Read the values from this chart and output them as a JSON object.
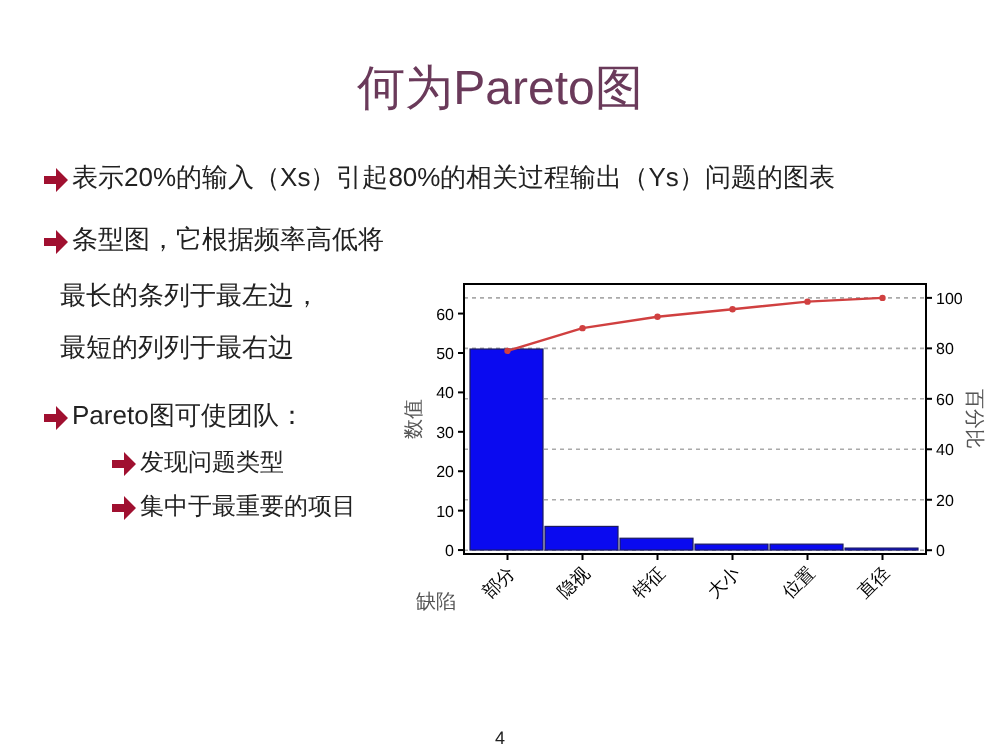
{
  "chart_data": {
    "type": "bar",
    "title": "何为Pareto图",
    "categories": [
      "部分",
      "隐视",
      "特征",
      "大小",
      "位置",
      "直径"
    ],
    "xlabel": "缺陷",
    "ylabel": "数值",
    "y2label": "百分比",
    "series": [
      {
        "color": "#0a0af0",
        "values": [
          51,
          6,
          3,
          1.5,
          1.5,
          0.5
        ]
      },
      {
        "type": "line",
        "axis": "y2",
        "color": "#d04040",
        "marker": "circle",
        "values": [
          79,
          88,
          92.5,
          95.5,
          98.5,
          100
        ]
      }
    ],
    "ylim": [
      -1,
      67.5
    ],
    "yticks": [
      0,
      10,
      20,
      30,
      40,
      50,
      60
    ],
    "y2lim": [
      -1.5,
      105.5
    ],
    "y2ticks": [
      0,
      20,
      40,
      60,
      80,
      100
    ],
    "grid": true,
    "annotations": [
      "表示20%的输入（Xs）引起80%的相关过程输出（Ys）问题的图表",
      "条型图，它根据频率高低将",
      "最长的条列于最左边，",
      "最短的列列于最右边",
      "Pareto图可使团队：",
      "发现问题类型",
      "集中于最重要的项目",
      "4"
    ]
  }
}
